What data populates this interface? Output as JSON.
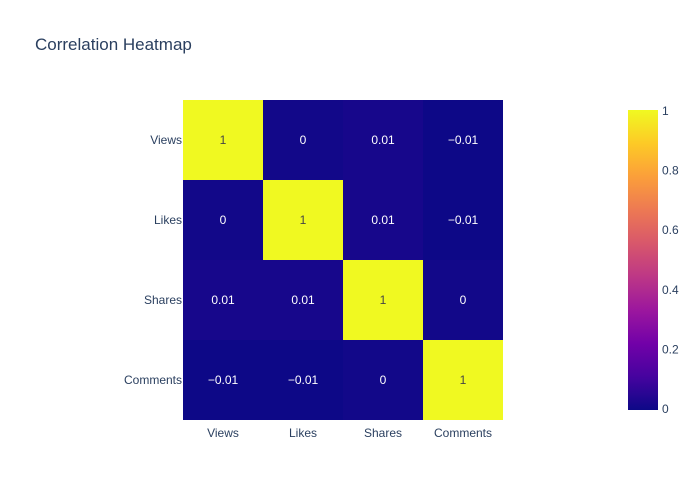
{
  "chart_data": {
    "type": "heatmap",
    "title": "Correlation Heatmap",
    "x_labels": [
      "Views",
      "Likes",
      "Shares",
      "Comments"
    ],
    "y_labels": [
      "Views",
      "Likes",
      "Shares",
      "Comments"
    ],
    "values": [
      [
        1,
        0,
        0.01,
        -0.01
      ],
      [
        0,
        1,
        0.01,
        -0.01
      ],
      [
        0.01,
        0.01,
        1,
        0
      ],
      [
        -0.01,
        -0.01,
        0,
        1
      ]
    ],
    "cell_text": [
      [
        "1",
        "0",
        "0.01",
        "−0.01"
      ],
      [
        "0",
        "1",
        "0.01",
        "−0.01"
      ],
      [
        "0.01",
        "0.01",
        "1",
        "0"
      ],
      [
        "−0.01",
        "−0.01",
        "0",
        "1"
      ]
    ],
    "colorscale": "plasma",
    "zrange": [
      -0.01,
      1
    ],
    "colorbar_ticks": [
      "0",
      "0.2",
      "0.4",
      "0.6",
      "0.8",
      "1"
    ],
    "colorbar_tick_values": [
      0,
      0.2,
      0.4,
      0.6,
      0.8,
      1
    ]
  }
}
